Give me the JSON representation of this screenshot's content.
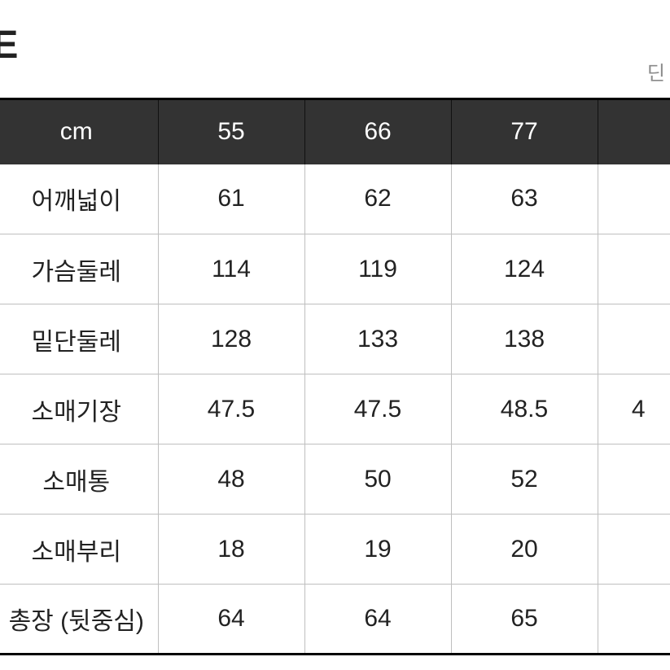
{
  "title": "ZE",
  "unit_fragment": "딘",
  "table": {
    "header_bg": "#333333",
    "header_fg": "#ffffff",
    "cell_fg": "#222222",
    "border_outer": "#000000",
    "border_inner": "#bfbfbf",
    "columns": [
      "cm",
      "55",
      "66",
      "77",
      ""
    ],
    "rows": [
      {
        "label": "어깨넓이",
        "values": [
          "61",
          "62",
          "63",
          ""
        ]
      },
      {
        "label": "가슴둘레",
        "values": [
          "114",
          "119",
          "124",
          ""
        ]
      },
      {
        "label": "밑단둘레",
        "values": [
          "128",
          "133",
          "138",
          ""
        ]
      },
      {
        "label": "소매기장",
        "values": [
          "47.5",
          "47.5",
          "48.5",
          "4"
        ]
      },
      {
        "label": "소매통",
        "values": [
          "48",
          "50",
          "52",
          ""
        ]
      },
      {
        "label": "소매부리",
        "values": [
          "18",
          "19",
          "20",
          ""
        ]
      },
      {
        "label": "총장 (뒷중심)",
        "values": [
          "64",
          "64",
          "65",
          ""
        ]
      }
    ]
  }
}
